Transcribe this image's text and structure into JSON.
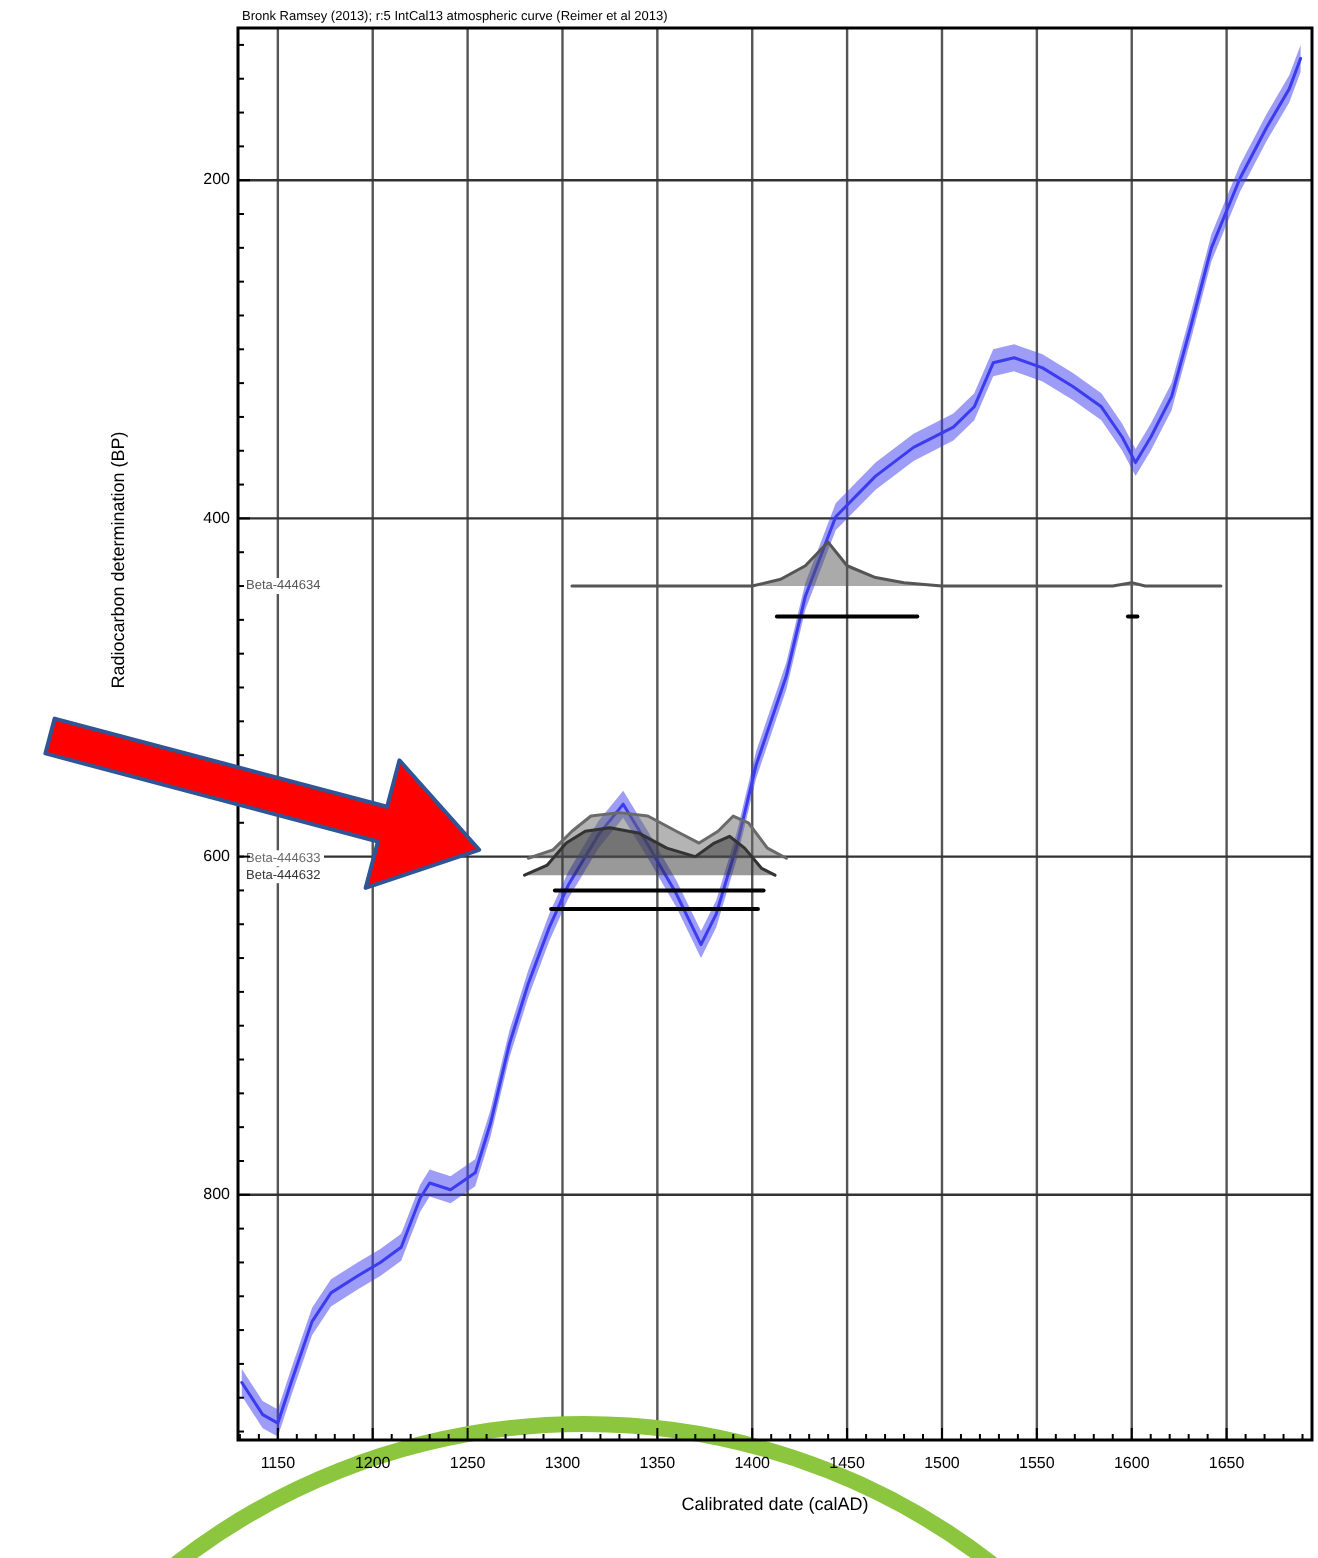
{
  "chart_data": {
    "type": "line",
    "annotations": [
      "Bronk Ramsey (2013); r:5 IntCal13 atmospheric curve (Reimer et al 2013)"
    ],
    "xlabel": "Calibrated date (calAD)",
    "ylabel": "Radiocarbon determination (BP)",
    "xlim": [
      1129,
      1695
    ],
    "ylim": [
      945,
      110
    ],
    "xticks": [
      {
        "value": 1130,
        "label": null
      },
      {
        "value": 1140,
        "label": null
      },
      1150,
      {
        "value": 1160,
        "label": null
      },
      {
        "value": 1170,
        "label": null
      },
      {
        "value": 1180,
        "label": null
      },
      {
        "value": 1190,
        "label": null
      },
      1200,
      {
        "value": 1210,
        "label": null
      },
      {
        "value": 1220,
        "label": null
      },
      {
        "value": 1230,
        "label": null
      },
      {
        "value": 1240,
        "label": null
      },
      1250,
      {
        "value": 1260,
        "label": null
      },
      {
        "value": 1270,
        "label": null
      },
      {
        "value": 1280,
        "label": null
      },
      {
        "value": 1290,
        "label": null
      },
      1300,
      {
        "value": 1310,
        "label": null
      },
      {
        "value": 1320,
        "label": null
      },
      {
        "value": 1330,
        "label": null
      },
      {
        "value": 1340,
        "label": null
      },
      1350,
      {
        "value": 1360,
        "label": null
      },
      {
        "value": 1370,
        "label": null
      },
      {
        "value": 1380,
        "label": null
      },
      {
        "value": 1390,
        "label": null
      },
      1400,
      {
        "value": 1410,
        "label": null
      },
      {
        "value": 1420,
        "label": null
      },
      {
        "value": 1430,
        "label": null
      },
      {
        "value": 1440,
        "label": null
      },
      1450,
      {
        "value": 1460,
        "label": null
      },
      {
        "value": 1470,
        "label": null
      },
      {
        "value": 1480,
        "label": null
      },
      {
        "value": 1490,
        "label": null
      },
      1500,
      {
        "value": 1510,
        "label": null
      },
      {
        "value": 1520,
        "label": null
      },
      {
        "value": 1530,
        "label": null
      },
      {
        "value": 1540,
        "label": null
      },
      1550,
      {
        "value": 1560,
        "label": null
      },
      {
        "value": 1570,
        "label": null
      },
      {
        "value": 1580,
        "label": null
      },
      {
        "value": 1590,
        "label": null
      },
      1600,
      {
        "value": 1610,
        "label": null
      },
      {
        "value": 1620,
        "label": null
      },
      {
        "value": 1630,
        "label": null
      },
      {
        "value": 1640,
        "label": null
      },
      1650,
      {
        "value": 1660,
        "label": null
      },
      {
        "value": 1670,
        "label": null
      },
      {
        "value": 1680,
        "label": null
      },
      {
        "value": 1690,
        "label": null
      }
    ],
    "yticks": [
      {
        "value": 120,
        "label": null
      },
      {
        "value": 140,
        "label": null
      },
      {
        "value": 160,
        "label": null
      },
      {
        "value": 180,
        "label": null
      },
      200,
      {
        "value": 220,
        "label": null
      },
      {
        "value": 240,
        "label": null
      },
      {
        "value": 260,
        "label": null
      },
      {
        "value": 280,
        "label": null
      },
      {
        "value": 300,
        "label": null
      },
      {
        "value": 320,
        "label": null
      },
      {
        "value": 340,
        "label": null
      },
      {
        "value": 360,
        "label": null
      },
      {
        "value": 380,
        "label": null
      },
      400,
      {
        "value": 420,
        "label": null
      },
      {
        "value": 440,
        "label": null
      },
      {
        "value": 460,
        "label": null
      },
      {
        "value": 480,
        "label": null
      },
      {
        "value": 500,
        "label": null
      },
      {
        "value": 520,
        "label": null
      },
      {
        "value": 540,
        "label": null
      },
      {
        "value": 560,
        "label": null
      },
      {
        "value": 580,
        "label": null
      },
      600,
      {
        "value": 620,
        "label": null
      },
      {
        "value": 640,
        "label": null
      },
      {
        "value": 660,
        "label": null
      },
      {
        "value": 680,
        "label": null
      },
      {
        "value": 700,
        "label": null
      },
      {
        "value": 720,
        "label": null
      },
      {
        "value": 740,
        "label": null
      },
      {
        "value": 760,
        "label": null
      },
      {
        "value": 780,
        "label": null
      },
      800,
      {
        "value": 820,
        "label": null
      },
      {
        "value": 840,
        "label": null
      },
      {
        "value": 860,
        "label": null
      },
      {
        "value": 880,
        "label": null
      },
      {
        "value": 900,
        "label": null
      },
      {
        "value": 920,
        "label": null
      },
      {
        "value": 940,
        "label": null
      }
    ],
    "grid": true,
    "series": [
      {
        "color": "#3b3bf0",
        "x": [
          1131,
          1142,
          1150,
          1157,
          1168,
          1178,
          1192,
          1204,
          1215,
          1225,
          1230,
          1241,
          1254,
          1262,
          1272,
          1282,
          1293,
          1303,
          1319,
          1332,
          1345,
          1360,
          1373,
          1381,
          1392,
          1402,
          1418,
          1428,
          1444,
          1465,
          1485,
          1506,
          1517,
          1527,
          1538,
          1553,
          1569,
          1584,
          1595,
          1602,
          1610,
          1621,
          1631,
          1642,
          1657,
          1671,
          1683,
          1689
        ],
        "values": [
          911,
          930,
          935,
          911,
          875,
          858,
          848,
          840,
          831,
          802,
          793,
          797,
          787,
          758,
          711,
          675,
          642,
          617,
          587,
          569,
          593,
          622,
          652,
          634,
          593,
          546,
          493,
          446,
          399,
          375,
          358,
          346,
          334,
          308,
          305,
          311,
          322,
          334,
          352,
          367,
          352,
          328,
          287,
          240,
          199,
          169,
          146,
          128
        ],
        "upper": [
          919,
          938,
          943,
          919,
          883,
          866,
          856,
          848,
          839,
          810,
          801,
          805,
          795,
          766,
          719,
          683,
          650,
          625,
          595,
          577,
          601,
          630,
          660,
          642,
          601,
          554,
          501,
          454,
          407,
          383,
          366,
          354,
          342,
          316,
          313,
          319,
          330,
          342,
          360,
          375,
          360,
          336,
          295,
          248,
          207,
          177,
          154,
          136
        ],
        "lower": [
          903,
          922,
          927,
          903,
          867,
          850,
          840,
          832,
          823,
          794,
          785,
          789,
          779,
          750,
          703,
          667,
          634,
          609,
          579,
          561,
          585,
          614,
          644,
          626,
          585,
          538,
          485,
          438,
          391,
          367,
          350,
          338,
          326,
          300,
          297,
          303,
          314,
          326,
          344,
          359,
          344,
          320,
          279,
          232,
          191,
          161,
          138,
          120
        ]
      },
      {
        "name": "Beta-444634",
        "color": "#555555",
        "x": [
          1305,
          1400,
          1415,
          1428,
          1440,
          1450,
          1465,
          1480,
          1500,
          1590,
          1600,
          1607,
          1647
        ],
        "values": [
          440,
          440,
          436,
          428,
          414,
          428,
          435,
          438,
          440,
          440,
          438,
          440,
          440
        ],
        "upper": [
          440,
          440,
          436,
          428,
          414,
          428,
          435,
          438,
          440,
          440,
          438,
          440,
          440
        ],
        "lower": [
          440,
          440,
          440,
          440,
          440,
          440,
          440,
          440,
          440,
          440,
          440,
          440,
          440
        ]
      },
      {
        "name": "Beta-444633",
        "color": "#6a6a6a",
        "x": [
          1282,
          1295,
          1305,
          1315,
          1330,
          1345,
          1360,
          1372,
          1382,
          1390,
          1398,
          1408,
          1418
        ],
        "values": [
          601,
          596,
          585,
          576,
          574,
          576,
          585,
          592,
          585,
          576,
          580,
          595,
          601
        ],
        "upper": [
          601,
          596,
          585,
          576,
          574,
          576,
          585,
          592,
          585,
          576,
          580,
          595,
          601
        ],
        "lower": [
          601,
          601,
          601,
          601,
          601,
          601,
          601,
          601,
          601,
          601,
          601,
          601,
          601
        ]
      },
      {
        "name": "Beta-444632",
        "color": "#333333",
        "x": [
          1280,
          1292,
          1302,
          1312,
          1325,
          1340,
          1355,
          1370,
          1380,
          1388,
          1396,
          1405,
          1412
        ],
        "values": [
          611,
          605,
          592,
          585,
          583,
          586,
          595,
          600,
          592,
          588,
          595,
          607,
          611
        ],
        "upper": [
          611,
          605,
          592,
          585,
          583,
          586,
          595,
          600,
          592,
          588,
          595,
          607,
          611
        ],
        "lower": [
          611,
          611,
          611,
          611,
          611,
          611,
          611,
          611,
          611,
          611,
          611,
          611,
          611
        ]
      },
      {
        "color": "#000000",
        "x": [
          1413,
          1487
        ],
        "values": [
          458,
          458
        ]
      },
      {
        "color": "#000000",
        "x": [
          1598,
          1603
        ],
        "values": [
          458,
          458
        ]
      },
      {
        "color": "#000000",
        "x": [
          1296,
          1406
        ],
        "values": [
          620,
          620
        ]
      },
      {
        "color": "#000000",
        "x": [
          1294,
          1403
        ],
        "values": [
          631,
          631
        ]
      }
    ]
  }
}
